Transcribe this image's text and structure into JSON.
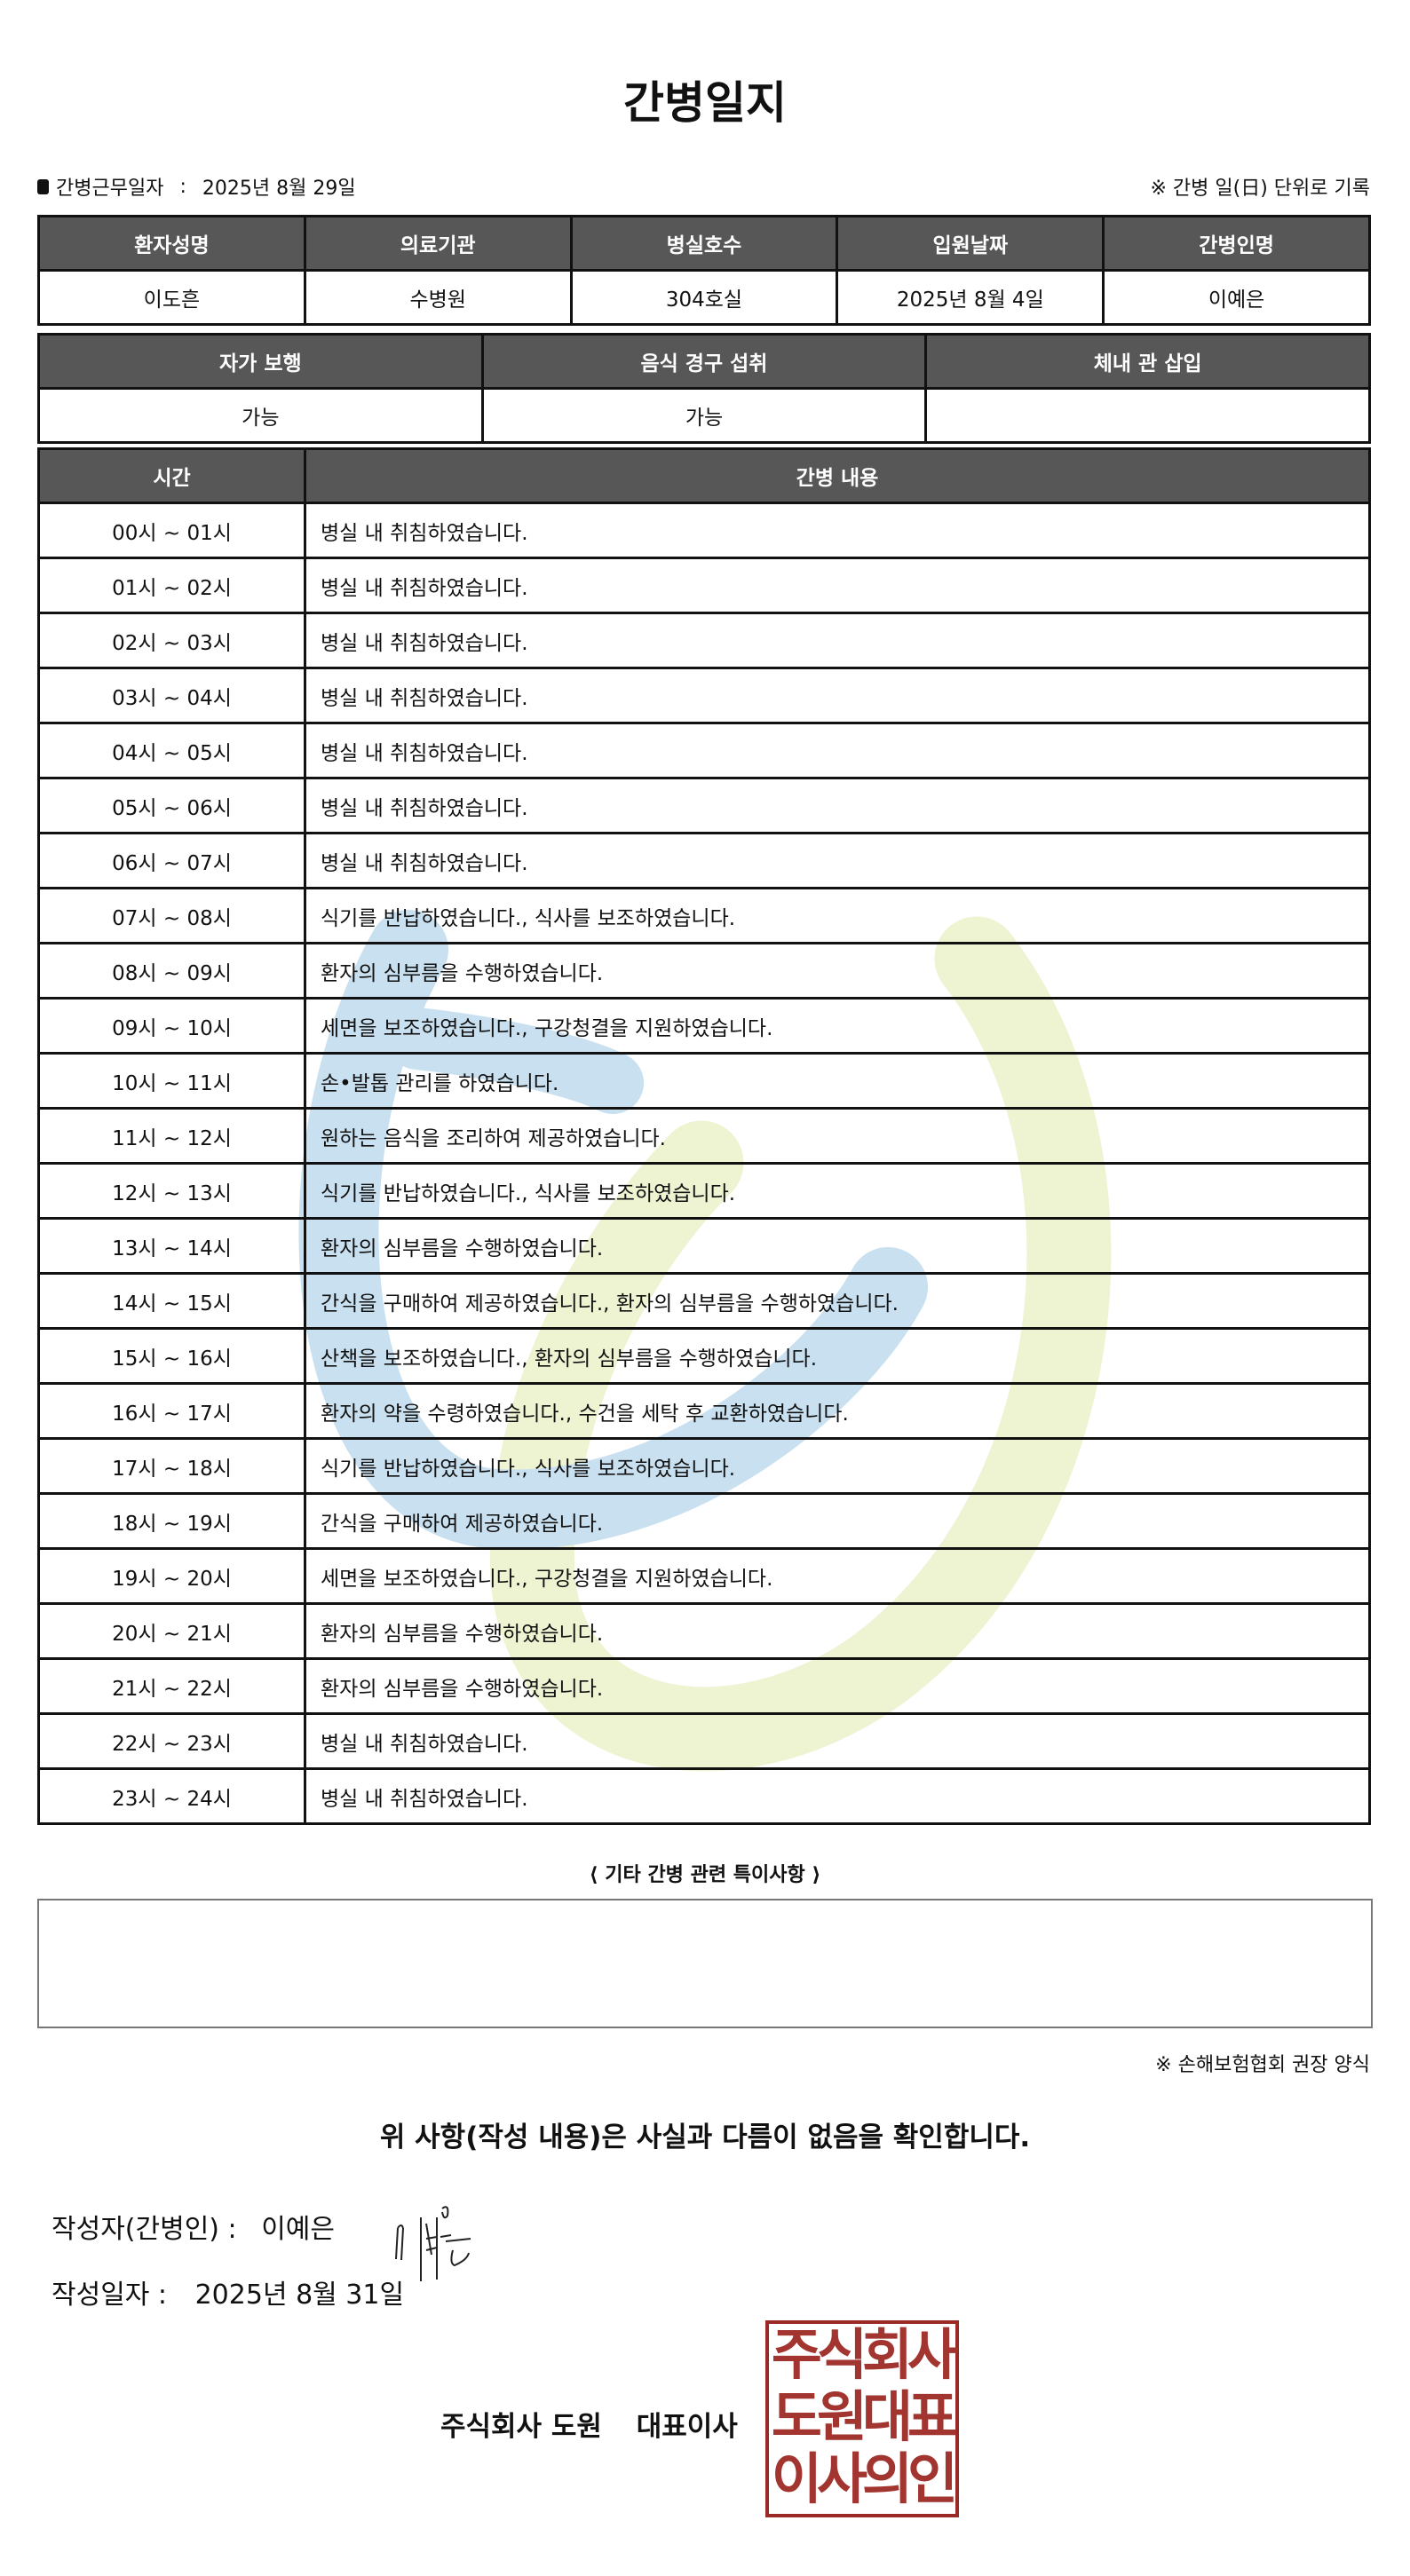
{
  "title": "간병일지",
  "work_date": {
    "label": "간병근무일자",
    "value": "2025년 8월 29일"
  },
  "unit_note": "※ 간병 일(日) 단위로 기록",
  "info_table": {
    "headers": [
      "환자성명",
      "의료기관",
      "병실호수",
      "입원날짜",
      "간병인명"
    ],
    "values": [
      "이도흔",
      "수병원",
      "304호실",
      "2025년 8월 4일",
      "이예은"
    ]
  },
  "status_table": {
    "headers": [
      "자가 보행",
      "음식 경구 섭취",
      "체내 관 삽입"
    ],
    "values": [
      "가능",
      "가능",
      ""
    ]
  },
  "log_table": {
    "headers": [
      "시간",
      "간병 내용"
    ],
    "rows": [
      {
        "time": "00시 ~ 01시",
        "content": "병실 내 취침하였습니다."
      },
      {
        "time": "01시 ~ 02시",
        "content": "병실 내 취침하였습니다."
      },
      {
        "time": "02시 ~ 03시",
        "content": "병실 내 취침하였습니다."
      },
      {
        "time": "03시 ~ 04시",
        "content": "병실 내 취침하였습니다."
      },
      {
        "time": "04시 ~ 05시",
        "content": "병실 내 취침하였습니다."
      },
      {
        "time": "05시 ~ 06시",
        "content": "병실 내 취침하였습니다."
      },
      {
        "time": "06시 ~ 07시",
        "content": "병실 내 취침하였습니다."
      },
      {
        "time": "07시 ~ 08시",
        "content": "식기를 반납하였습니다., 식사를 보조하였습니다."
      },
      {
        "time": "08시 ~ 09시",
        "content": "환자의 심부름을 수행하였습니다."
      },
      {
        "time": "09시 ~ 10시",
        "content": "세면을 보조하였습니다., 구강청결을 지원하였습니다."
      },
      {
        "time": "10시 ~ 11시",
        "content": "손•발톱 관리를 하였습니다."
      },
      {
        "time": "11시 ~ 12시",
        "content": "원하는 음식을 조리하여 제공하였습니다."
      },
      {
        "time": "12시 ~ 13시",
        "content": "식기를 반납하였습니다., 식사를 보조하였습니다."
      },
      {
        "time": "13시 ~ 14시",
        "content": "환자의 심부름을 수행하였습니다."
      },
      {
        "time": "14시 ~ 15시",
        "content": "간식을 구매하여 제공하였습니다., 환자의 심부름을 수행하였습니다."
      },
      {
        "time": "15시 ~ 16시",
        "content": "산책을 보조하였습니다., 환자의 심부름을 수행하였습니다."
      },
      {
        "time": "16시 ~ 17시",
        "content": "환자의 약을 수령하였습니다., 수건을 세탁 후 교환하였습니다."
      },
      {
        "time": "17시 ~ 18시",
        "content": "식기를 반납하였습니다., 식사를 보조하였습니다."
      },
      {
        "time": "18시 ~ 19시",
        "content": "간식을 구매하여 제공하였습니다."
      },
      {
        "time": "19시 ~ 20시",
        "content": "세면을 보조하였습니다., 구강청결을 지원하였습니다."
      },
      {
        "time": "20시 ~ 21시",
        "content": "환자의 심부름을 수행하였습니다."
      },
      {
        "time": "21시 ~ 22시",
        "content": "환자의 심부름을 수행하였습니다."
      },
      {
        "time": "22시 ~ 23시",
        "content": "병실 내 취침하였습니다."
      },
      {
        "time": "23시 ~ 24시",
        "content": "병실 내 취침하였습니다."
      }
    ]
  },
  "notes": {
    "title": "⟨ 기타 간병 관련 특이사항 ⟩",
    "value": ""
  },
  "association_note": "※ 손해보험협회 권장 양식",
  "confirmation": "위 사항(작성 내용)은 사실과 다름이 없음을 확인합니다.",
  "writer": {
    "label": "작성자(간병인) :",
    "name": "이예은",
    "signature": "이예은"
  },
  "written_date": {
    "label": "작성일자 :",
    "value": "2025년 8월 31일"
  },
  "company": {
    "name": "주식회사 도원",
    "title": "대표이사"
  },
  "seal": {
    "lines": [
      "주식회사",
      "도원대표",
      "이사의인"
    ],
    "color": "#9b2a26"
  },
  "colors": {
    "header_bg": "#575757",
    "watermark_blue": "#c9e0f0",
    "watermark_yellow": "#eef3d2"
  }
}
